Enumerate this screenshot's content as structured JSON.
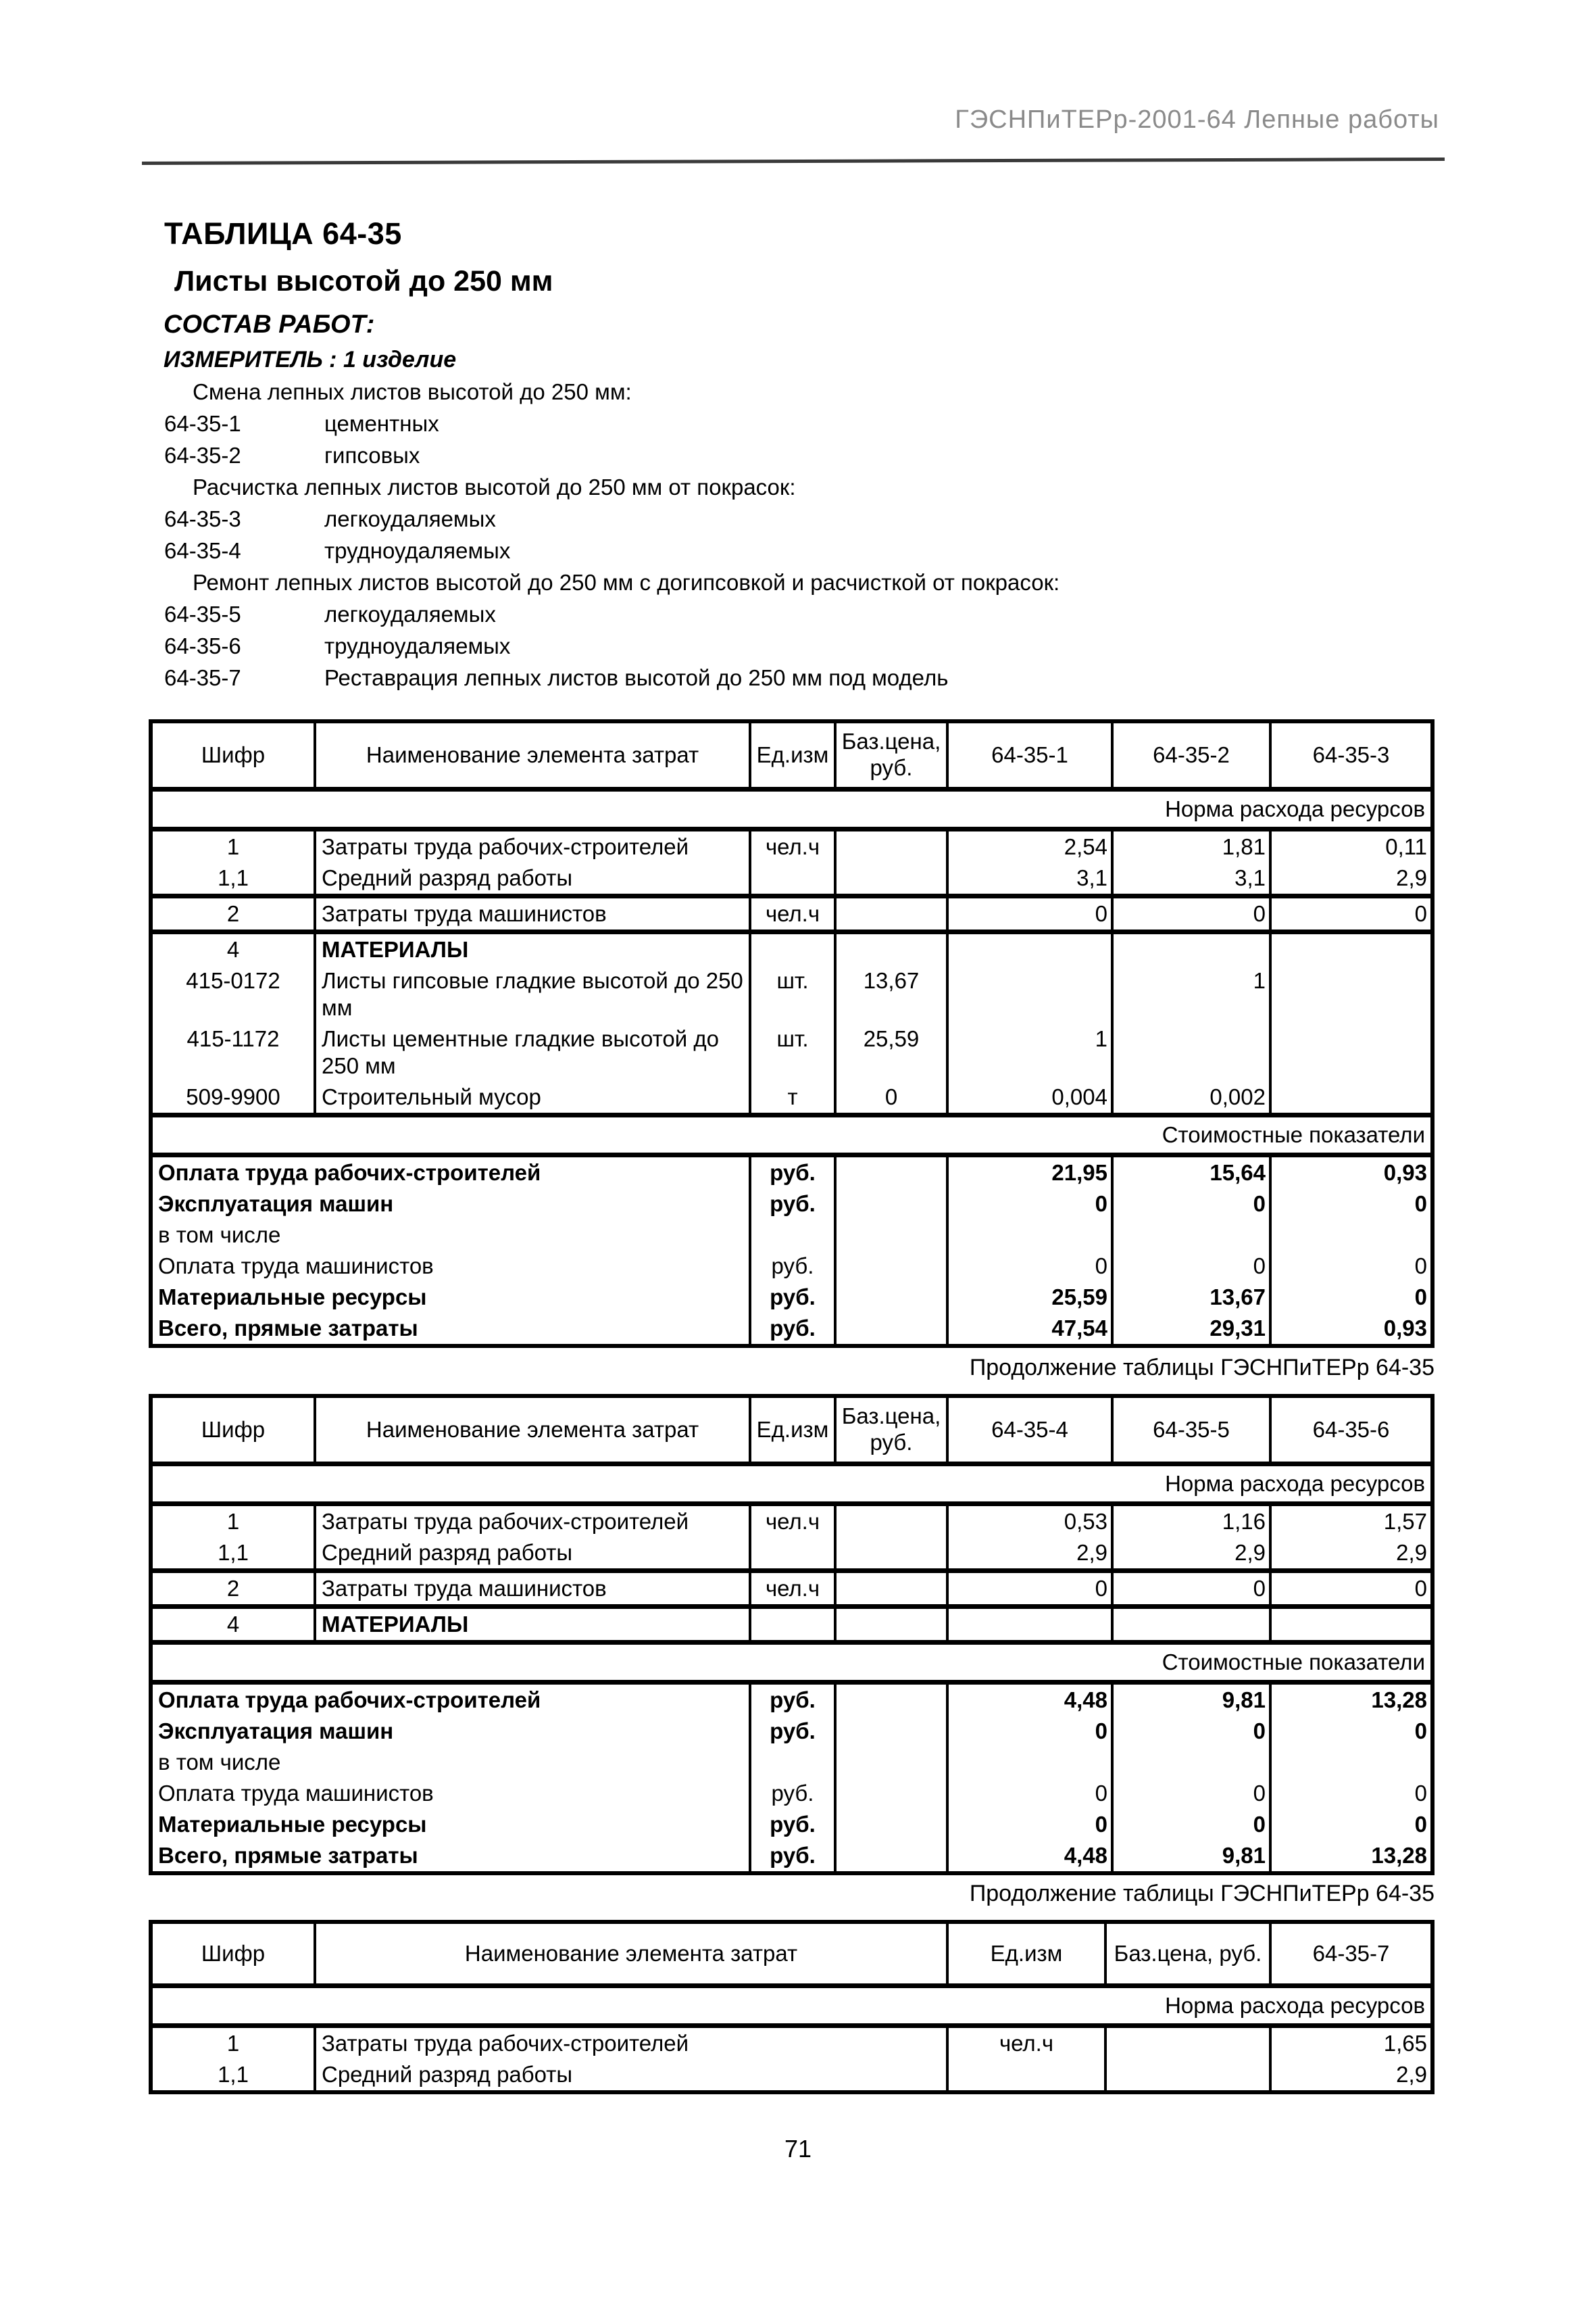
{
  "page": {
    "doc_header": "ГЭСНПиТЕРр-2001-64 Лепные работы",
    "page_number": "71"
  },
  "title": "ТАБЛИЦА 64-35",
  "subtitle": "Листы высотой до 250 мм",
  "sostav_label": "СОСТАВ РАБОТ:",
  "izmeritel_label": "ИЗМЕРИТЕЛЬ : 1 изделие",
  "work_items": [
    {
      "code": "",
      "text": "Смена лепных листов высотой до 250 мм:",
      "group": true
    },
    {
      "code": "64-35-1",
      "text": "цементных"
    },
    {
      "code": "64-35-2",
      "text": "гипсовых"
    },
    {
      "code": "",
      "text": "Расчистка лепных листов высотой до 250 мм от покрасок:",
      "group": true
    },
    {
      "code": "64-35-3",
      "text": "легкоудаляемых"
    },
    {
      "code": "64-35-4",
      "text": "трудноудаляемых"
    },
    {
      "code": "",
      "text": "Ремонт лепных листов высотой до 250 мм с догипсовкой и расчисткой от покрасок:",
      "group": true
    },
    {
      "code": "64-35-5",
      "text": "легкоудаляемых"
    },
    {
      "code": "64-35-6",
      "text": "трудноудаляемых"
    },
    {
      "code": "64-35-7",
      "text": "Реставрация лепных листов высотой до 250 мм под модель"
    }
  ],
  "tables": [
    {
      "caption": "",
      "columns": [
        "code",
        "name",
        "unit",
        "price",
        "val",
        "val",
        "val"
      ],
      "headers": [
        "Шифр",
        "Наименование элемента затрат",
        "Ед.изм",
        "Баз.цена,\nруб.",
        "64-35-1",
        "64-35-2",
        "64-35-3"
      ],
      "sections": [
        {
          "type": "span",
          "text": "Норма расхода ресурсов"
        },
        {
          "type": "rows",
          "rows": [
            {
              "code": "1",
              "name": "Затраты труда рабочих-строителей",
              "unit": "чел.ч",
              "price": "",
              "values": [
                "2,54",
                "1,81",
                "0,11"
              ]
            },
            {
              "code": "1,1",
              "name": "Средний разряд работы",
              "unit": "",
              "price": "",
              "values": [
                "3,1",
                "3,1",
                "2,9"
              ]
            }
          ]
        },
        {
          "type": "rows",
          "rows": [
            {
              "code": "2",
              "name": "Затраты труда машинистов",
              "unit": "чел.ч",
              "price": "",
              "values": [
                "0",
                "0",
                "0"
              ]
            }
          ]
        },
        {
          "type": "rows",
          "rows": [
            {
              "code": "4",
              "name": "МАТЕРИАЛЫ",
              "bold_name": true,
              "unit": "",
              "price": "",
              "values": [
                "",
                "",
                ""
              ]
            },
            {
              "code": "415-0172",
              "name": "Листы гипсовые гладкие высотой до 250 мм",
              "unit": "шт.",
              "price": "13,67",
              "values": [
                "",
                "1",
                ""
              ]
            },
            {
              "code": "415-1172",
              "name": "Листы цементные гладкие высотой до 250 мм",
              "unit": "шт.",
              "price": "25,59",
              "values": [
                "1",
                "",
                ""
              ]
            },
            {
              "code": "509-9900",
              "name": "Строительный мусор",
              "unit": "т",
              "price": "0",
              "values": [
                "0,004",
                "0,002",
                ""
              ]
            }
          ]
        },
        {
          "type": "span",
          "text": "Стоимостные показатели"
        },
        {
          "type": "rows",
          "merged": true,
          "rows": [
            {
              "name": "Оплата труда рабочих-строителей",
              "bold": true,
              "unit": "руб.",
              "price": "",
              "values": [
                "21,95",
                "15,64",
                "0,93"
              ]
            },
            {
              "name": "Эксплуатация машин",
              "bold": true,
              "unit": "руб.",
              "price": "",
              "values": [
                "0",
                "0",
                "0"
              ]
            },
            {
              "name": "в том числе",
              "unit": "",
              "price": "",
              "values": [
                "",
                "",
                ""
              ]
            },
            {
              "name": "Оплата труда машинистов",
              "unit": "руб.",
              "price": "",
              "values": [
                "0",
                "0",
                "0"
              ]
            },
            {
              "name": "Материальные ресурсы",
              "bold": true,
              "unit": "руб.",
              "price": "",
              "values": [
                "25,59",
                "13,67",
                "0"
              ]
            },
            {
              "name": "Всего, прямые затраты",
              "bold": true,
              "unit": "руб.",
              "price": "",
              "values": [
                "47,54",
                "29,31",
                "0,93"
              ]
            }
          ]
        }
      ]
    },
    {
      "caption": "Продолжение таблицы ГЭСНПиТЕРр 64-35",
      "columns": [
        "code",
        "name",
        "unit",
        "price",
        "val",
        "val",
        "val"
      ],
      "headers": [
        "Шифр",
        "Наименование элемента затрат",
        "Ед.изм",
        "Баз.цена,\nруб.",
        "64-35-4",
        "64-35-5",
        "64-35-6"
      ],
      "sections": [
        {
          "type": "span",
          "text": "Норма расхода ресурсов"
        },
        {
          "type": "rows",
          "rows": [
            {
              "code": "1",
              "name": "Затраты труда рабочих-строителей",
              "unit": "чел.ч",
              "price": "",
              "values": [
                "0,53",
                "1,16",
                "1,57"
              ]
            },
            {
              "code": "1,1",
              "name": "Средний разряд работы",
              "unit": "",
              "price": "",
              "values": [
                "2,9",
                "2,9",
                "2,9"
              ]
            }
          ]
        },
        {
          "type": "rows",
          "rows": [
            {
              "code": "2",
              "name": "Затраты труда машинистов",
              "unit": "чел.ч",
              "price": "",
              "values": [
                "0",
                "0",
                "0"
              ]
            }
          ]
        },
        {
          "type": "rows",
          "rows": [
            {
              "code": "4",
              "name": "МАТЕРИАЛЫ",
              "bold_name": true,
              "unit": "",
              "price": "",
              "values": [
                "",
                "",
                ""
              ]
            }
          ]
        },
        {
          "type": "span",
          "text": "Стоимостные показатели"
        },
        {
          "type": "rows",
          "merged": true,
          "rows": [
            {
              "name": "Оплата труда рабочих-строителей",
              "bold": true,
              "unit": "руб.",
              "price": "",
              "values": [
                "4,48",
                "9,81",
                "13,28"
              ]
            },
            {
              "name": "Эксплуатация машин",
              "bold": true,
              "unit": "руб.",
              "price": "",
              "values": [
                "0",
                "0",
                "0"
              ]
            },
            {
              "name": "в том числе",
              "unit": "",
              "price": "",
              "values": [
                "",
                "",
                ""
              ]
            },
            {
              "name": "Оплата труда машинистов",
              "unit": "руб.",
              "price": "",
              "values": [
                "0",
                "0",
                "0"
              ]
            },
            {
              "name": "Материальные ресурсы",
              "bold": true,
              "unit": "руб.",
              "price": "",
              "values": [
                "0",
                "0",
                "0"
              ]
            },
            {
              "name": "Всего, прямые затраты",
              "bold": true,
              "unit": "руб.",
              "price": "",
              "values": [
                "4,48",
                "9,81",
                "13,28"
              ]
            }
          ]
        }
      ]
    },
    {
      "caption": "Продолжение таблицы ГЭСНПиТЕРр 64-35",
      "columns": [
        "code",
        "name",
        "unit",
        "price",
        "val"
      ],
      "headers": [
        "Шифр",
        "Наименование элемента затрат",
        "Ед.изм",
        "Баз.цена, руб.",
        "64-35-7"
      ],
      "sections": [
        {
          "type": "span",
          "text": "Норма расхода ресурсов"
        },
        {
          "type": "rows",
          "rows": [
            {
              "code": "1",
              "name": "Затраты труда рабочих-строителей",
              "unit": "чел.ч",
              "price": "",
              "values": [
                "1,65"
              ]
            },
            {
              "code": "1,1",
              "name": "Средний разряд работы",
              "unit": "",
              "price": "",
              "values": [
                "2,9"
              ]
            }
          ]
        }
      ]
    }
  ]
}
